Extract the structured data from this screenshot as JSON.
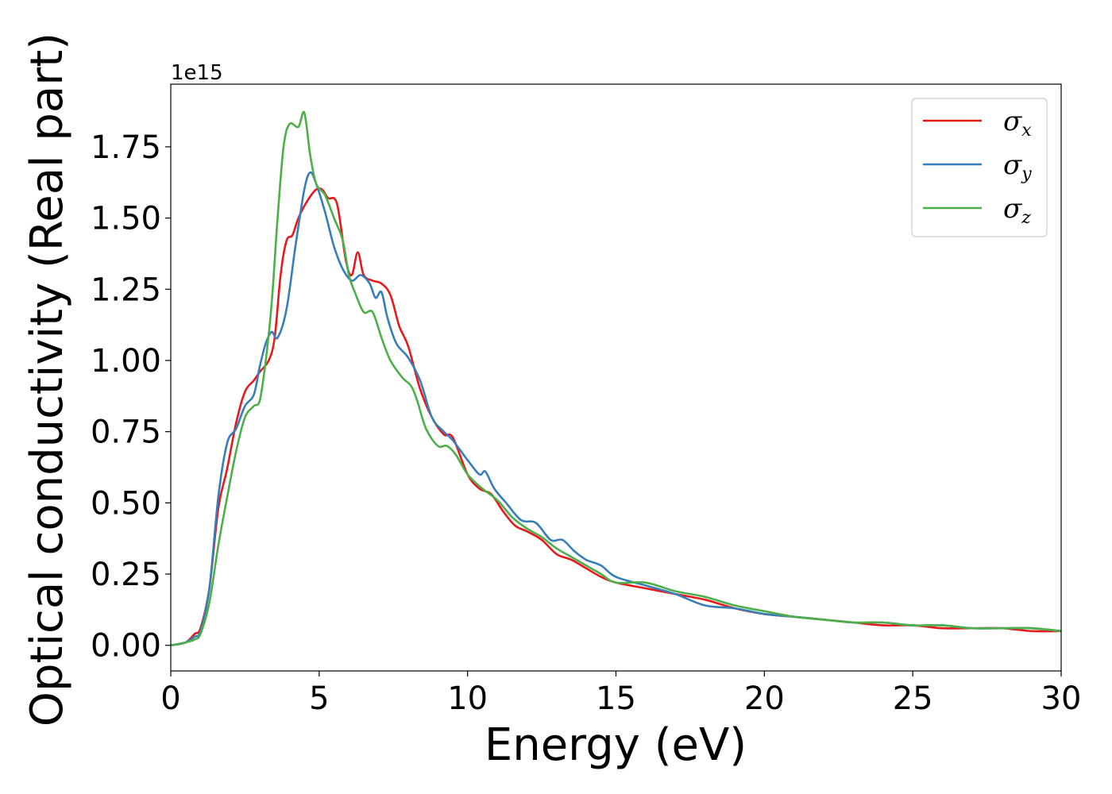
{
  "chart_data": {
    "type": "line",
    "title": "",
    "xlabel": "Energy (eV)",
    "ylabel": "Optical conductivity (Real part)",
    "y_offset_label": "1e15",
    "xlim": [
      0,
      30
    ],
    "ylim": [
      -0.09,
      1.97
    ],
    "xticks": [
      0,
      5,
      10,
      15,
      20,
      25,
      30
    ],
    "yticks": [
      0.0,
      0.25,
      0.5,
      0.75,
      1.0,
      1.25,
      1.5,
      1.75
    ],
    "xtick_labels": [
      "0",
      "5",
      "10",
      "15",
      "20",
      "25",
      "30"
    ],
    "ytick_labels": [
      "0.00",
      "0.25",
      "0.50",
      "0.75",
      "1.00",
      "1.25",
      "1.50",
      "1.75"
    ],
    "grid": false,
    "legend_position": "top-right",
    "series": [
      {
        "name": "σx",
        "symbol": "σ",
        "subscript": "x",
        "color": "#e41a1c",
        "x": [
          0,
          0.5,
          0.8,
          1.0,
          1.3,
          1.6,
          1.9,
          2.2,
          2.5,
          2.8,
          3.0,
          3.3,
          3.5,
          3.7,
          3.9,
          4.1,
          4.3,
          4.6,
          4.9,
          5.1,
          5.3,
          5.6,
          5.9,
          6.1,
          6.3,
          6.5,
          6.8,
          7.1,
          7.4,
          7.7,
          8.0,
          8.4,
          8.8,
          9.2,
          9.5,
          10.0,
          10.4,
          10.8,
          11.2,
          11.6,
          12.0,
          12.5,
          13.0,
          13.5,
          14.0,
          14.5,
          15.0,
          16.0,
          17.0,
          18.0,
          19.0,
          20.0,
          21.0,
          22.0,
          23.0,
          24.0,
          25.0,
          26.0,
          27.0,
          28.0,
          29.0,
          30.0
        ],
        "y": [
          0.0,
          0.01,
          0.04,
          0.06,
          0.2,
          0.48,
          0.62,
          0.78,
          0.89,
          0.93,
          0.96,
          1.0,
          1.08,
          1.3,
          1.42,
          1.44,
          1.5,
          1.56,
          1.6,
          1.6,
          1.57,
          1.55,
          1.35,
          1.3,
          1.38,
          1.3,
          1.28,
          1.27,
          1.23,
          1.12,
          1.05,
          0.9,
          0.8,
          0.74,
          0.73,
          0.6,
          0.55,
          0.53,
          0.47,
          0.42,
          0.4,
          0.37,
          0.32,
          0.3,
          0.27,
          0.24,
          0.22,
          0.2,
          0.18,
          0.16,
          0.13,
          0.11,
          0.1,
          0.09,
          0.08,
          0.07,
          0.07,
          0.06,
          0.06,
          0.06,
          0.05,
          0.05
        ]
      },
      {
        "name": "σy",
        "symbol": "σ",
        "subscript": "y",
        "color": "#377eb8",
        "x": [
          0,
          0.5,
          0.8,
          1.0,
          1.3,
          1.6,
          1.9,
          2.2,
          2.5,
          2.8,
          3.0,
          3.2,
          3.4,
          3.6,
          3.9,
          4.2,
          4.5,
          4.7,
          4.9,
          5.2,
          5.5,
          5.8,
          6.1,
          6.4,
          6.7,
          6.9,
          7.1,
          7.3,
          7.6,
          8.0,
          8.4,
          8.8,
          9.2,
          9.5,
          10.0,
          10.4,
          10.6,
          10.9,
          11.3,
          11.8,
          12.3,
          12.8,
          13.2,
          13.6,
          14.0,
          14.5,
          15.0,
          16.0,
          17.0,
          18.0,
          19.0,
          20.0,
          21.0,
          22.0,
          23.0,
          24.0,
          25.0,
          26.0,
          27.0,
          28.0,
          29.0,
          30.0
        ],
        "y": [
          0.0,
          0.01,
          0.03,
          0.05,
          0.2,
          0.52,
          0.71,
          0.76,
          0.84,
          0.88,
          0.98,
          1.06,
          1.1,
          1.08,
          1.18,
          1.4,
          1.6,
          1.66,
          1.62,
          1.52,
          1.4,
          1.32,
          1.28,
          1.3,
          1.27,
          1.22,
          1.24,
          1.15,
          1.06,
          1.01,
          0.93,
          0.8,
          0.75,
          0.72,
          0.65,
          0.6,
          0.61,
          0.55,
          0.5,
          0.44,
          0.43,
          0.37,
          0.37,
          0.33,
          0.3,
          0.28,
          0.24,
          0.21,
          0.18,
          0.14,
          0.13,
          0.11,
          0.1,
          0.09,
          0.08,
          0.08,
          0.07,
          0.07,
          0.06,
          0.06,
          0.06,
          0.05
        ]
      },
      {
        "name": "σz",
        "symbol": "σ",
        "subscript": "z",
        "color": "#4daf4a",
        "x": [
          0,
          0.5,
          0.8,
          1.0,
          1.3,
          1.6,
          1.9,
          2.2,
          2.5,
          2.8,
          3.0,
          3.2,
          3.4,
          3.6,
          3.8,
          4.0,
          4.3,
          4.5,
          4.7,
          4.9,
          5.2,
          5.5,
          5.8,
          6.0,
          6.2,
          6.5,
          6.8,
          7.1,
          7.4,
          7.8,
          8.1,
          8.3,
          8.6,
          9.0,
          9.3,
          9.6,
          10.0,
          10.5,
          11.0,
          11.5,
          12.0,
          12.5,
          13.0,
          13.5,
          14.0,
          14.5,
          15.0,
          16.0,
          17.0,
          18.0,
          19.0,
          20.0,
          21.0,
          22.0,
          23.0,
          24.0,
          25.0,
          26.0,
          27.0,
          28.0,
          29.0,
          30.0
        ],
        "y": [
          0.0,
          0.01,
          0.02,
          0.04,
          0.15,
          0.35,
          0.52,
          0.68,
          0.8,
          0.84,
          0.86,
          1.0,
          1.2,
          1.5,
          1.75,
          1.83,
          1.82,
          1.87,
          1.72,
          1.62,
          1.58,
          1.5,
          1.42,
          1.3,
          1.24,
          1.17,
          1.17,
          1.08,
          1.0,
          0.94,
          0.91,
          0.86,
          0.76,
          0.7,
          0.7,
          0.67,
          0.6,
          0.55,
          0.51,
          0.45,
          0.41,
          0.38,
          0.34,
          0.31,
          0.28,
          0.25,
          0.22,
          0.22,
          0.19,
          0.17,
          0.14,
          0.12,
          0.1,
          0.09,
          0.08,
          0.08,
          0.07,
          0.07,
          0.06,
          0.06,
          0.06,
          0.05
        ]
      }
    ]
  }
}
